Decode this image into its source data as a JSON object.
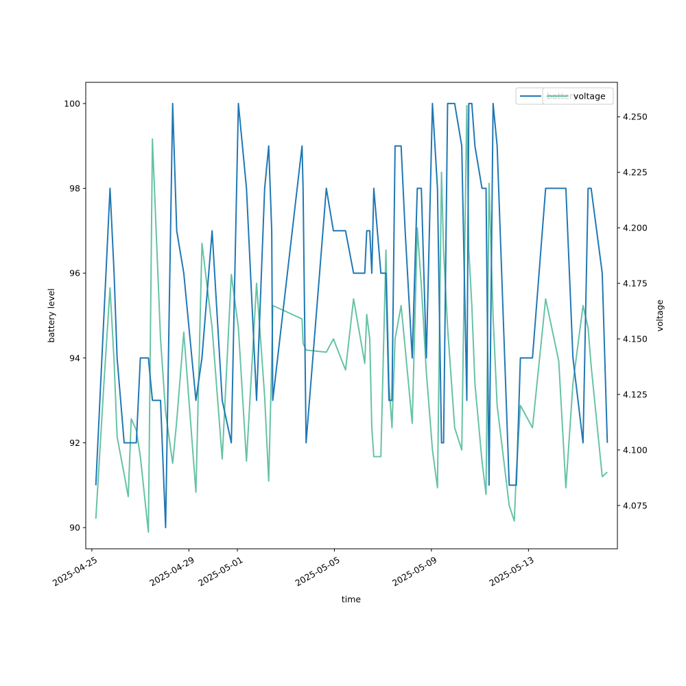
{
  "chart_data": {
    "type": "line",
    "xlabel": "time",
    "ylabel_left": "battery level",
    "ylabel_right": "voltage",
    "legend_placement": "upper-right",
    "grid": false,
    "x_ticks": [
      "2025-04-25",
      "2025-04-29",
      "2025-05-01",
      "2025-05-05",
      "2025-05-09",
      "2025-05-13"
    ],
    "y_left_ticks": [
      "90",
      "92",
      "94",
      "96",
      "98",
      "100"
    ],
    "y_right_ticks": [
      "4.075",
      "4.100",
      "4.125",
      "4.150",
      "4.175",
      "4.200",
      "4.225",
      "4.250"
    ],
    "x_range": [
      "2025-04-24 18:00",
      "2025-05-16 16:00"
    ],
    "ylim_left": [
      89.5,
      100.5
    ],
    "ylim_right": [
      4.0555,
      4.2655
    ],
    "series": [
      {
        "name": "battery",
        "axis": "left",
        "color": "#1f77b4",
        "x": [
          "2025-04-25 04:00",
          "2025-04-25 12:00",
          "2025-04-25 18:00",
          "2025-04-25 22:00",
          "2025-04-26 01:00",
          "2025-04-26 08:00",
          "2025-04-26 12:00",
          "2025-04-26 15:00",
          "2025-04-26 20:00",
          "2025-04-27 00:00",
          "2025-04-27 08:00",
          "2025-04-27 12:00",
          "2025-04-27 20:00",
          "2025-04-28 01:00",
          "2025-04-28 08:00",
          "2025-04-28 12:00",
          "2025-04-28 19:00",
          "2025-04-29 07:00",
          "2025-04-29 13:00",
          "2025-04-29 23:00",
          "2025-04-30 09:00",
          "2025-04-30 18:00",
          "2025-05-01 01:00",
          "2025-05-01 09:00",
          "2025-05-01 19:00",
          "2025-05-02 03:00",
          "2025-05-02 07:00",
          "2025-05-02 10:00",
          "2025-05-02 11:00",
          "2025-05-03 16:00",
          "2025-05-03 17:00",
          "2025-05-03 20:00",
          "2025-05-04 16:00",
          "2025-05-04 23:00",
          "2025-05-05 11:00",
          "2025-05-05 19:00",
          "2025-05-06 06:00",
          "2025-05-06 08:00",
          "2025-05-06 11:00",
          "2025-05-06 13:00",
          "2025-05-06 15:00",
          "2025-05-06 22:00",
          "2025-05-07 03:00",
          "2025-05-07 06:00",
          "2025-05-07 09:00",
          "2025-05-07 12:00",
          "2025-05-07 18:00",
          "2025-05-07 22:00",
          "2025-05-08 05:00",
          "2025-05-08 10:00",
          "2025-05-08 14:00",
          "2025-05-08 19:00",
          "2025-05-09 01:00",
          "2025-05-09 06:00",
          "2025-05-09 10:00",
          "2025-05-09 12:00",
          "2025-05-09 16:00",
          "2025-05-09 23:00",
          "2025-05-10 06:00",
          "2025-05-10 11:00",
          "2025-05-10 13:00",
          "2025-05-10 16:00",
          "2025-05-10 19:00",
          "2025-05-11 02:00",
          "2025-05-11 06:00",
          "2025-05-11 09:00",
          "2025-05-11 13:00",
          "2025-05-11 17:00",
          "2025-05-12 05:00",
          "2025-05-12 10:00",
          "2025-05-12 12:00",
          "2025-05-12 16:00",
          "2025-05-13 04:00",
          "2025-05-13 17:00",
          "2025-05-14 06:00",
          "2025-05-14 13:00",
          "2025-05-14 20:00",
          "2025-05-15 06:00",
          "2025-05-15 11:00",
          "2025-05-15 14:00",
          "2025-05-16 01:00",
          "2025-05-16 06:00"
        ],
        "values": [
          91,
          95,
          98,
          96,
          94,
          92,
          92,
          92,
          92,
          94,
          94,
          93,
          93,
          90,
          100,
          97,
          96,
          93,
          94,
          97,
          93,
          92,
          100,
          98,
          93,
          98,
          99,
          97,
          93,
          99,
          98,
          92,
          98,
          97,
          97,
          96,
          96,
          97,
          97,
          96,
          98,
          96,
          96,
          93,
          93,
          99,
          99,
          97,
          94,
          98,
          98,
          94,
          100,
          98,
          92,
          92,
          100,
          100,
          99,
          93,
          100,
          100,
          99,
          98,
          98,
          91,
          100,
          99,
          91,
          91,
          91,
          94,
          94,
          98,
          98,
          98,
          94,
          92,
          98,
          98,
          96,
          92
        ]
      },
      {
        "name": "voltage",
        "axis": "right",
        "color": "#66c2a5",
        "x": [
          "2025-04-25 04:00",
          "2025-04-25 12:00",
          "2025-04-25 18:00",
          "2025-04-25 22:00",
          "2025-04-26 01:00",
          "2025-04-26 08:00",
          "2025-04-26 12:00",
          "2025-04-26 15:00",
          "2025-04-26 20:00",
          "2025-04-27 00:00",
          "2025-04-27 08:00",
          "2025-04-27 12:00",
          "2025-04-27 20:00",
          "2025-04-28 01:00",
          "2025-04-28 08:00",
          "2025-04-28 12:00",
          "2025-04-28 19:00",
          "2025-04-29 07:00",
          "2025-04-29 13:00",
          "2025-04-29 23:00",
          "2025-04-30 09:00",
          "2025-04-30 18:00",
          "2025-05-01 01:00",
          "2025-05-01 09:00",
          "2025-05-01 19:00",
          "2025-05-02 03:00",
          "2025-05-02 07:00",
          "2025-05-02 10:00",
          "2025-05-02 11:00",
          "2025-05-03 16:00",
          "2025-05-03 17:00",
          "2025-05-03 20:00",
          "2025-05-04 16:00",
          "2025-05-04 23:00",
          "2025-05-05 11:00",
          "2025-05-05 19:00",
          "2025-05-06 06:00",
          "2025-05-06 08:00",
          "2025-05-06 11:00",
          "2025-05-06 13:00",
          "2025-05-06 15:00",
          "2025-05-06 22:00",
          "2025-05-07 03:00",
          "2025-05-07 06:00",
          "2025-05-07 09:00",
          "2025-05-07 12:00",
          "2025-05-07 18:00",
          "2025-05-07 22:00",
          "2025-05-08 05:00",
          "2025-05-08 10:00",
          "2025-05-08 14:00",
          "2025-05-08 19:00",
          "2025-05-09 01:00",
          "2025-05-09 06:00",
          "2025-05-09 10:00",
          "2025-05-09 12:00",
          "2025-05-09 16:00",
          "2025-05-09 23:00",
          "2025-05-10 06:00",
          "2025-05-10 11:00",
          "2025-05-10 13:00",
          "2025-05-10 16:00",
          "2025-05-10 19:00",
          "2025-05-11 02:00",
          "2025-05-11 06:00",
          "2025-05-11 09:00",
          "2025-05-11 13:00",
          "2025-05-11 17:00",
          "2025-05-12 05:00",
          "2025-05-12 10:00",
          "2025-05-12 12:00",
          "2025-05-12 16:00",
          "2025-05-13 04:00",
          "2025-05-13 17:00",
          "2025-05-14 06:00",
          "2025-05-14 13:00",
          "2025-05-14 20:00",
          "2025-05-15 06:00",
          "2025-05-15 11:00",
          "2025-05-15 14:00",
          "2025-05-16 01:00",
          "2025-05-16 06:00"
        ],
        "values": [
          4.069,
          4.13,
          4.173,
          4.14,
          4.106,
          4.089,
          4.079,
          4.114,
          4.109,
          4.097,
          4.063,
          4.24,
          4.15,
          4.117,
          4.094,
          4.113,
          4.153,
          4.081,
          4.193,
          4.155,
          4.096,
          4.179,
          4.155,
          4.095,
          4.175,
          4.124,
          4.086,
          4.14,
          4.165,
          4.159,
          4.148,
          4.145,
          4.144,
          4.15,
          4.136,
          4.168,
          4.139,
          4.161,
          4.15,
          4.11,
          4.097,
          4.097,
          4.19,
          4.13,
          4.11,
          4.15,
          4.165,
          4.146,
          4.112,
          4.2,
          4.174,
          4.135,
          4.1,
          4.083,
          4.225,
          4.19,
          4.155,
          4.11,
          4.1,
          4.255,
          4.19,
          4.165,
          4.13,
          4.095,
          4.08,
          4.22,
          4.16,
          4.12,
          4.075,
          4.068,
          4.09,
          4.12,
          4.11,
          4.168,
          4.14,
          4.083,
          4.13,
          4.165,
          4.155,
          4.138,
          4.088,
          4.09
        ]
      }
    ]
  }
}
